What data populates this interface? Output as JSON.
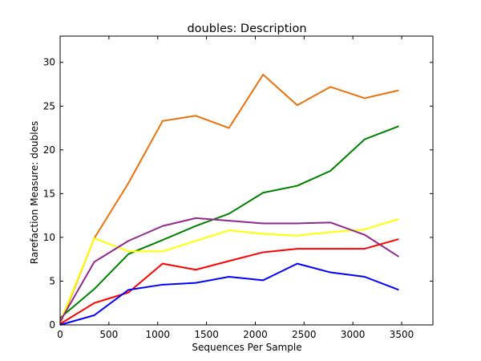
{
  "chart_data": {
    "type": "line",
    "title": "doubles: Description",
    "xlabel": "Sequences Per Sample",
    "ylabel": "Rarefaction Measure: doubles",
    "xlim": [
      0,
      3820
    ],
    "ylim": [
      0,
      33
    ],
    "xticks": [
      0,
      500,
      1000,
      1500,
      2000,
      2500,
      3000,
      3500
    ],
    "yticks": [
      0,
      5,
      10,
      15,
      20,
      25,
      30
    ],
    "grid": false,
    "legend": "none",
    "x": [
      0,
      350,
      700,
      1050,
      1390,
      1730,
      2080,
      2430,
      2770,
      3120,
      3470
    ],
    "series": [
      {
        "color": "#e8710a",
        "values": [
          0.1,
          9.9,
          16.2,
          23.3,
          23.9,
          22.5,
          28.6,
          25.1,
          27.2,
          25.9,
          26.8
        ]
      },
      {
        "color": "#008000",
        "values": [
          0.8,
          4.1,
          8.1,
          9.7,
          11.3,
          12.7,
          15.1,
          15.9,
          17.6,
          21.2,
          22.7
        ]
      },
      {
        "color": "#ffff00",
        "values": [
          0.3,
          9.9,
          8.4,
          8.4,
          9.6,
          10.8,
          10.4,
          10.2,
          10.6,
          10.9,
          12.1
        ]
      },
      {
        "color": "#902890",
        "values": [
          0.4,
          7.2,
          9.6,
          11.3,
          12.2,
          11.9,
          11.6,
          11.6,
          11.7,
          10.3,
          7.8
        ]
      },
      {
        "color": "#ff0000",
        "values": [
          0.1,
          2.5,
          3.7,
          7.0,
          6.3,
          7.3,
          8.3,
          8.7,
          8.7,
          8.7,
          9.8
        ]
      },
      {
        "color": "#0000ff",
        "values": [
          0.0,
          1.1,
          4.0,
          4.6,
          4.8,
          5.5,
          5.1,
          7.0,
          6.0,
          5.5,
          4.0
        ]
      }
    ]
  }
}
